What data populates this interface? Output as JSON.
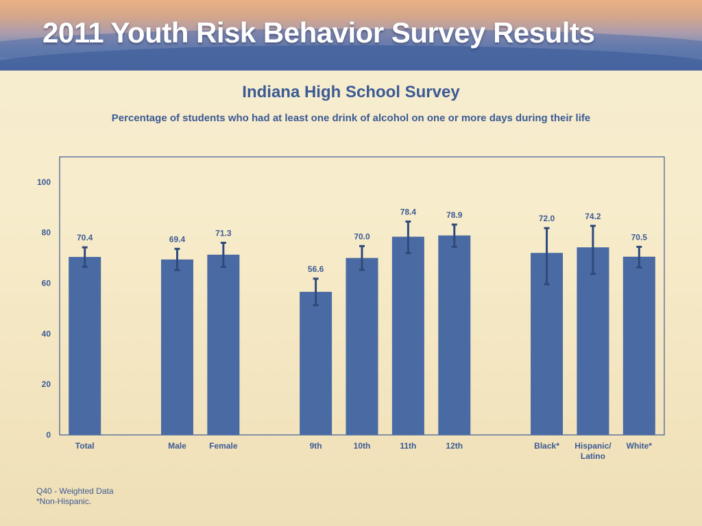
{
  "banner": {
    "title": "2011 Youth Risk Behavior Survey Results"
  },
  "chart_data": {
    "type": "bar",
    "title": "Indiana High School Survey",
    "subtitle": "Percentage of students who had at least one drink of alcohol on one or more days during their life",
    "xlabel": "",
    "ylabel": "",
    "ylim": [
      0,
      110
    ],
    "yticks": [
      0,
      20,
      40,
      60,
      80,
      100
    ],
    "grid": false,
    "bar_color": "#4a6aa3",
    "error_color": "#2f4a7a",
    "groups": [
      {
        "categories": [
          {
            "label": [
              "Total"
            ],
            "value": 70.4,
            "ci": [
              66.5,
              74.2
            ]
          }
        ]
      },
      {
        "categories": [
          {
            "label": [
              "Male"
            ],
            "value": 69.4,
            "ci": [
              65.2,
              73.6
            ]
          },
          {
            "label": [
              "Female"
            ],
            "value": 71.3,
            "ci": [
              66.5,
              76.0
            ]
          }
        ]
      },
      {
        "categories": [
          {
            "label": [
              "9th"
            ],
            "value": 56.6,
            "ci": [
              51.3,
              61.8
            ]
          },
          {
            "label": [
              "10th"
            ],
            "value": 70.0,
            "ci": [
              65.3,
              74.7
            ]
          },
          {
            "label": [
              "11th"
            ],
            "value": 78.4,
            "ci": [
              71.9,
              84.4
            ]
          },
          {
            "label": [
              "12th"
            ],
            "value": 78.9,
            "ci": [
              74.4,
              83.2
            ]
          }
        ]
      },
      {
        "categories": [
          {
            "label": [
              "Black*"
            ],
            "value": 72.0,
            "ci": [
              59.6,
              81.8
            ]
          },
          {
            "label": [
              "Hispanic/",
              "Latino"
            ],
            "value": 74.2,
            "ci": [
              63.7,
              82.7
            ]
          },
          {
            "label": [
              "White*"
            ],
            "value": 70.5,
            "ci": [
              66.3,
              74.4
            ]
          }
        ]
      }
    ]
  },
  "footnotes": {
    "line1": "Q40 - Weighted Data",
    "line2": "*Non-Hispanic."
  }
}
